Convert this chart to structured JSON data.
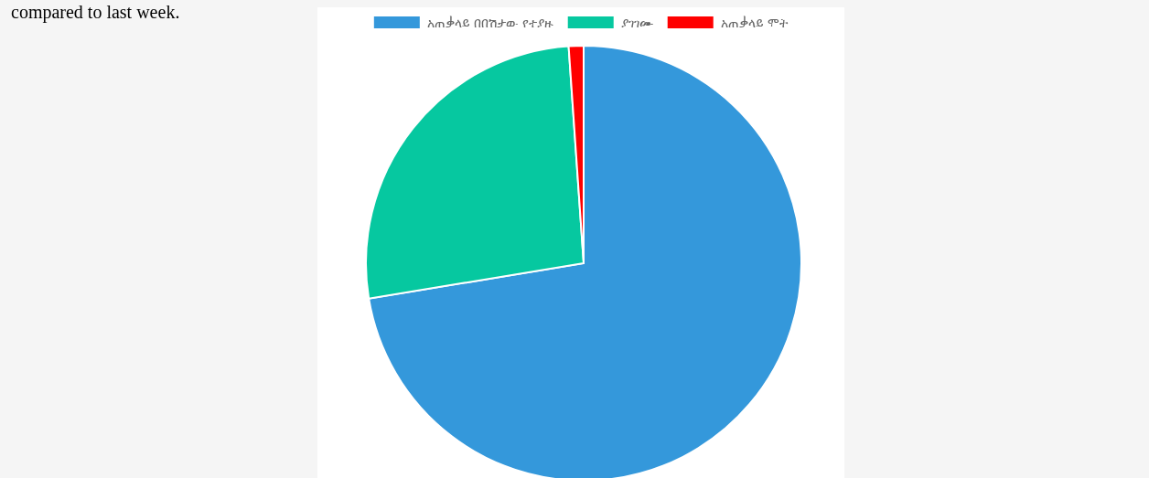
{
  "chart_data": {
    "type": "pie",
    "categories": [
      "አጠቃላይ በበሽታው የተያዙ",
      "ያገገሙ",
      "አጠቃላይ ሞት"
    ],
    "values": [
      72.4,
      26.5,
      1.1
    ],
    "colors": [
      "#3498db",
      "#06c8a0",
      "#ff0000"
    ],
    "legend": "top",
    "annotations": [
      "compared to last week."
    ]
  }
}
